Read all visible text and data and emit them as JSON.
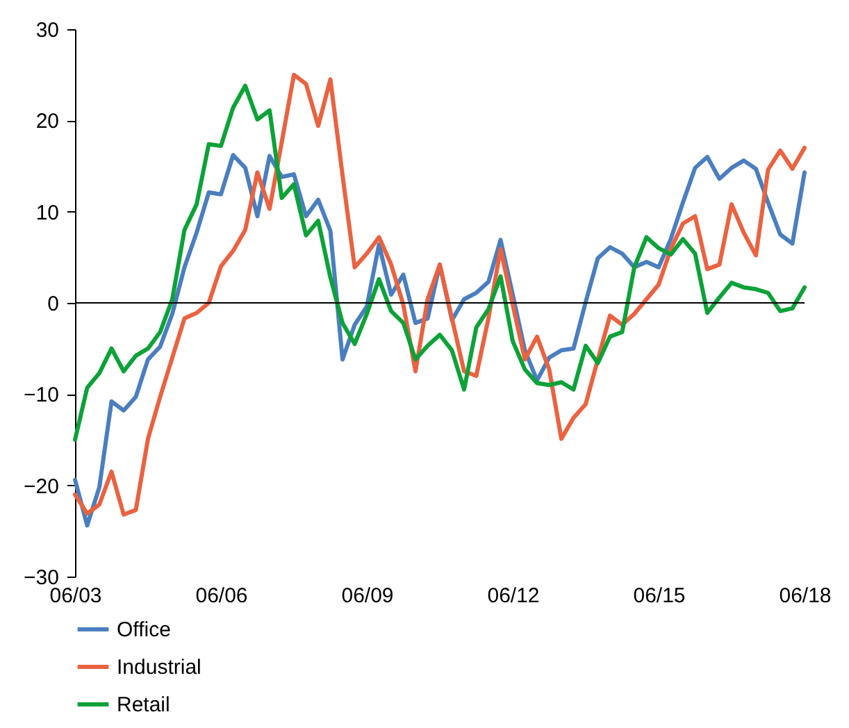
{
  "chart_data": {
    "type": "line",
    "categories": [
      "06/03",
      null,
      null,
      null,
      null,
      null,
      null,
      null,
      null,
      null,
      null,
      null,
      "06/06",
      null,
      null,
      null,
      null,
      null,
      null,
      null,
      null,
      null,
      null,
      null,
      "06/09",
      null,
      null,
      null,
      null,
      null,
      null,
      null,
      null,
      null,
      null,
      null,
      "06/12",
      null,
      null,
      null,
      null,
      null,
      null,
      null,
      null,
      null,
      null,
      null,
      "06/15",
      null,
      null,
      null,
      null,
      null,
      null,
      null,
      null,
      null,
      null,
      null,
      "06/18"
    ],
    "series": [
      {
        "name": "Office",
        "color": "#4a7ebf",
        "values": [
          -19.4,
          -24.4,
          -20.2,
          -10.8,
          -11.8,
          -10.3,
          -6.2,
          -4.8,
          -1.2,
          3.9,
          7.7,
          12.1,
          11.9,
          16.2,
          14.8,
          9.5,
          16.1,
          13.8,
          14.1,
          9.5,
          11.3,
          7.9,
          -6.2,
          -2.4,
          -0.4,
          6.4,
          0.9,
          3.1,
          -2.2,
          -1.7,
          4.2,
          -1.9,
          0.4,
          1.1,
          2.3,
          6.9,
          0.9,
          -5.2,
          -8.5,
          -6.0,
          -5.2,
          -5.0,
          0.1,
          4.9,
          6.1,
          5.4,
          3.9,
          4.5,
          3.9,
          7.0,
          11.0,
          14.8,
          16.0,
          13.6,
          14.8,
          15.6,
          14.7,
          11.0,
          7.5,
          6.5,
          14.3
        ]
      },
      {
        "name": "Industrial",
        "color": "#ea6240",
        "values": [
          -21.0,
          -23.1,
          -22.1,
          -18.5,
          -23.2,
          -22.7,
          -14.9,
          -10.3,
          -6.0,
          -1.7,
          -1.1,
          0.0,
          4.0,
          5.7,
          8.0,
          14.3,
          10.3,
          17.6,
          25.0,
          24.0,
          19.4,
          24.5,
          14.0,
          3.9,
          5.4,
          7.2,
          4.2,
          -0.2,
          -7.5,
          0.4,
          4.2,
          -1.7,
          -7.5,
          -8.0,
          -1.7,
          5.9,
          -0.2,
          -6.2,
          -3.7,
          -7.3,
          -14.9,
          -12.6,
          -11.1,
          -6.2,
          -1.4,
          -2.4,
          -1.2,
          0.4,
          2.0,
          5.9,
          8.7,
          9.5,
          3.7,
          4.2,
          10.8,
          7.7,
          5.2,
          14.6,
          16.7,
          14.7,
          17.0
        ]
      },
      {
        "name": "Retail",
        "color": "#0ca238",
        "values": [
          -15.0,
          -9.3,
          -7.7,
          -5.0,
          -7.5,
          -5.8,
          -5.0,
          -3.2,
          0.4,
          8.0,
          10.8,
          17.4,
          17.2,
          21.4,
          23.8,
          20.1,
          21.1,
          11.5,
          13.0,
          7.4,
          9.0,
          2.8,
          -2.2,
          -4.5,
          -1.2,
          2.6,
          -0.9,
          -2.2,
          -6.2,
          -4.7,
          -3.5,
          -5.2,
          -9.5,
          -2.7,
          -0.7,
          2.9,
          -4.2,
          -7.3,
          -8.8,
          -9.0,
          -8.7,
          -9.5,
          -4.7,
          -6.6,
          -3.7,
          -3.2,
          3.9,
          7.2,
          6.0,
          5.3,
          7.0,
          5.4,
          -1.1,
          0.6,
          2.2,
          1.7,
          1.5,
          1.1,
          -0.9,
          -0.6,
          1.7
        ]
      }
    ],
    "ylim": [
      -30,
      30
    ],
    "yticks": [
      -30,
      -20,
      -10,
      0,
      10,
      20,
      30
    ],
    "ref_lines": [
      {
        "axis": "y",
        "value": 0,
        "color": "#000000"
      }
    ],
    "grid": false,
    "legend": "bottom",
    "marker": "none",
    "line_style": "solid"
  }
}
